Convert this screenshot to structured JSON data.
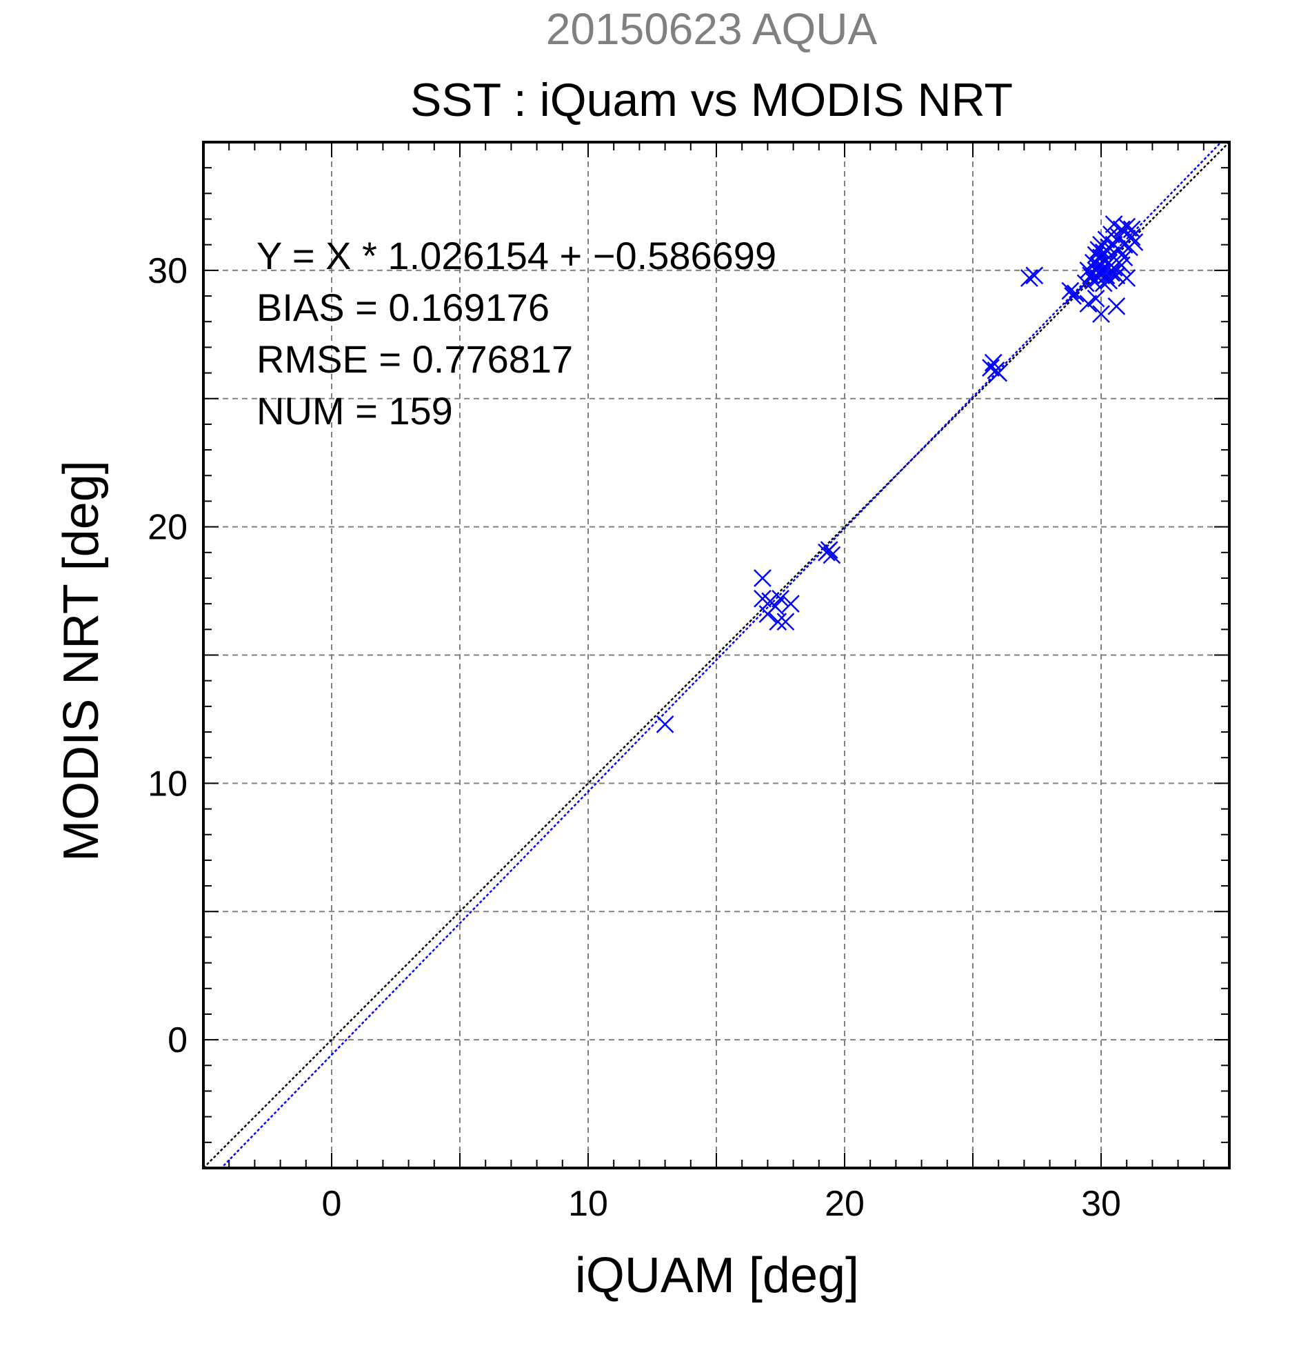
{
  "chart_data": {
    "type": "scatter",
    "title": "20150623 AQUA",
    "subtitle": "SST : iQuam vs MODIS NRT",
    "xlabel": "iQUAM [deg]",
    "ylabel": "MODIS NRT [deg]",
    "xlim": [
      -5,
      35
    ],
    "ylim": [
      -5,
      35
    ],
    "x_ticks": [
      0,
      10,
      20,
      30
    ],
    "y_ticks": [
      0,
      10,
      20,
      30
    ],
    "grid": true,
    "colors": {
      "points": "#0000ff",
      "fit_line": "#0000ff",
      "identity_line": "#000000",
      "title": "#808080",
      "grid": "#808080"
    },
    "stats_lines": [
      "Y = X * 1.026154 + −0.586699",
      "BIAS = 0.169176",
      "RMSE = 0.776817",
      "NUM = 159"
    ],
    "fit": {
      "slope": 1.026154,
      "intercept": -0.586699
    },
    "identity": {
      "slope": 1,
      "intercept": 0
    },
    "points": [
      [
        13.0,
        12.3
      ],
      [
        16.8,
        18.0
      ],
      [
        16.8,
        17.2
      ],
      [
        17.0,
        16.6
      ],
      [
        17.1,
        17.1
      ],
      [
        17.3,
        16.9
      ],
      [
        17.4,
        16.3
      ],
      [
        17.5,
        17.2
      ],
      [
        17.7,
        16.3
      ],
      [
        17.9,
        17.0
      ],
      [
        19.3,
        19.0
      ],
      [
        19.4,
        19.1
      ],
      [
        19.5,
        18.9
      ],
      [
        25.7,
        26.2
      ],
      [
        25.9,
        26.1
      ],
      [
        26.0,
        26.0
      ],
      [
        25.8,
        26.4
      ],
      [
        27.2,
        29.7
      ],
      [
        27.4,
        29.8
      ],
      [
        28.8,
        29.2
      ],
      [
        28.9,
        29.0
      ],
      [
        29.0,
        29.1
      ],
      [
        29.4,
        29.5
      ],
      [
        29.5,
        28.7
      ],
      [
        29.5,
        30.0
      ],
      [
        29.6,
        29.8
      ],
      [
        29.7,
        30.3
      ],
      [
        29.7,
        29.6
      ],
      [
        29.8,
        30.6
      ],
      [
        29.8,
        30.0
      ],
      [
        29.8,
        28.9
      ],
      [
        29.9,
        30.8
      ],
      [
        29.9,
        30.2
      ],
      [
        29.9,
        29.7
      ],
      [
        30.0,
        28.3
      ],
      [
        30.0,
        30.5
      ],
      [
        30.0,
        31.0
      ],
      [
        30.0,
        29.9
      ],
      [
        30.1,
        30.7
      ],
      [
        30.1,
        30.1
      ],
      [
        30.1,
        29.5
      ],
      [
        30.2,
        30.4
      ],
      [
        30.2,
        31.2
      ],
      [
        30.2,
        29.8
      ],
      [
        30.3,
        30.9
      ],
      [
        30.3,
        30.3
      ],
      [
        30.3,
        29.6
      ],
      [
        30.4,
        31.4
      ],
      [
        30.4,
        30.6
      ],
      [
        30.4,
        29.9
      ],
      [
        30.5,
        30.1
      ],
      [
        30.5,
        31.0
      ],
      [
        30.5,
        31.8
      ],
      [
        30.6,
        28.6
      ],
      [
        30.6,
        30.4
      ],
      [
        30.6,
        29.8
      ],
      [
        30.7,
        31.3
      ],
      [
        30.7,
        30.8
      ],
      [
        30.8,
        30.2
      ],
      [
        30.8,
        31.6
      ],
      [
        30.9,
        31.0
      ],
      [
        30.9,
        30.5
      ],
      [
        31.0,
        31.7
      ],
      [
        31.0,
        29.7
      ],
      [
        31.1,
        30.9
      ],
      [
        31.2,
        31.3
      ],
      [
        31.2,
        31.6
      ],
      [
        31.3,
        31.1
      ]
    ]
  }
}
